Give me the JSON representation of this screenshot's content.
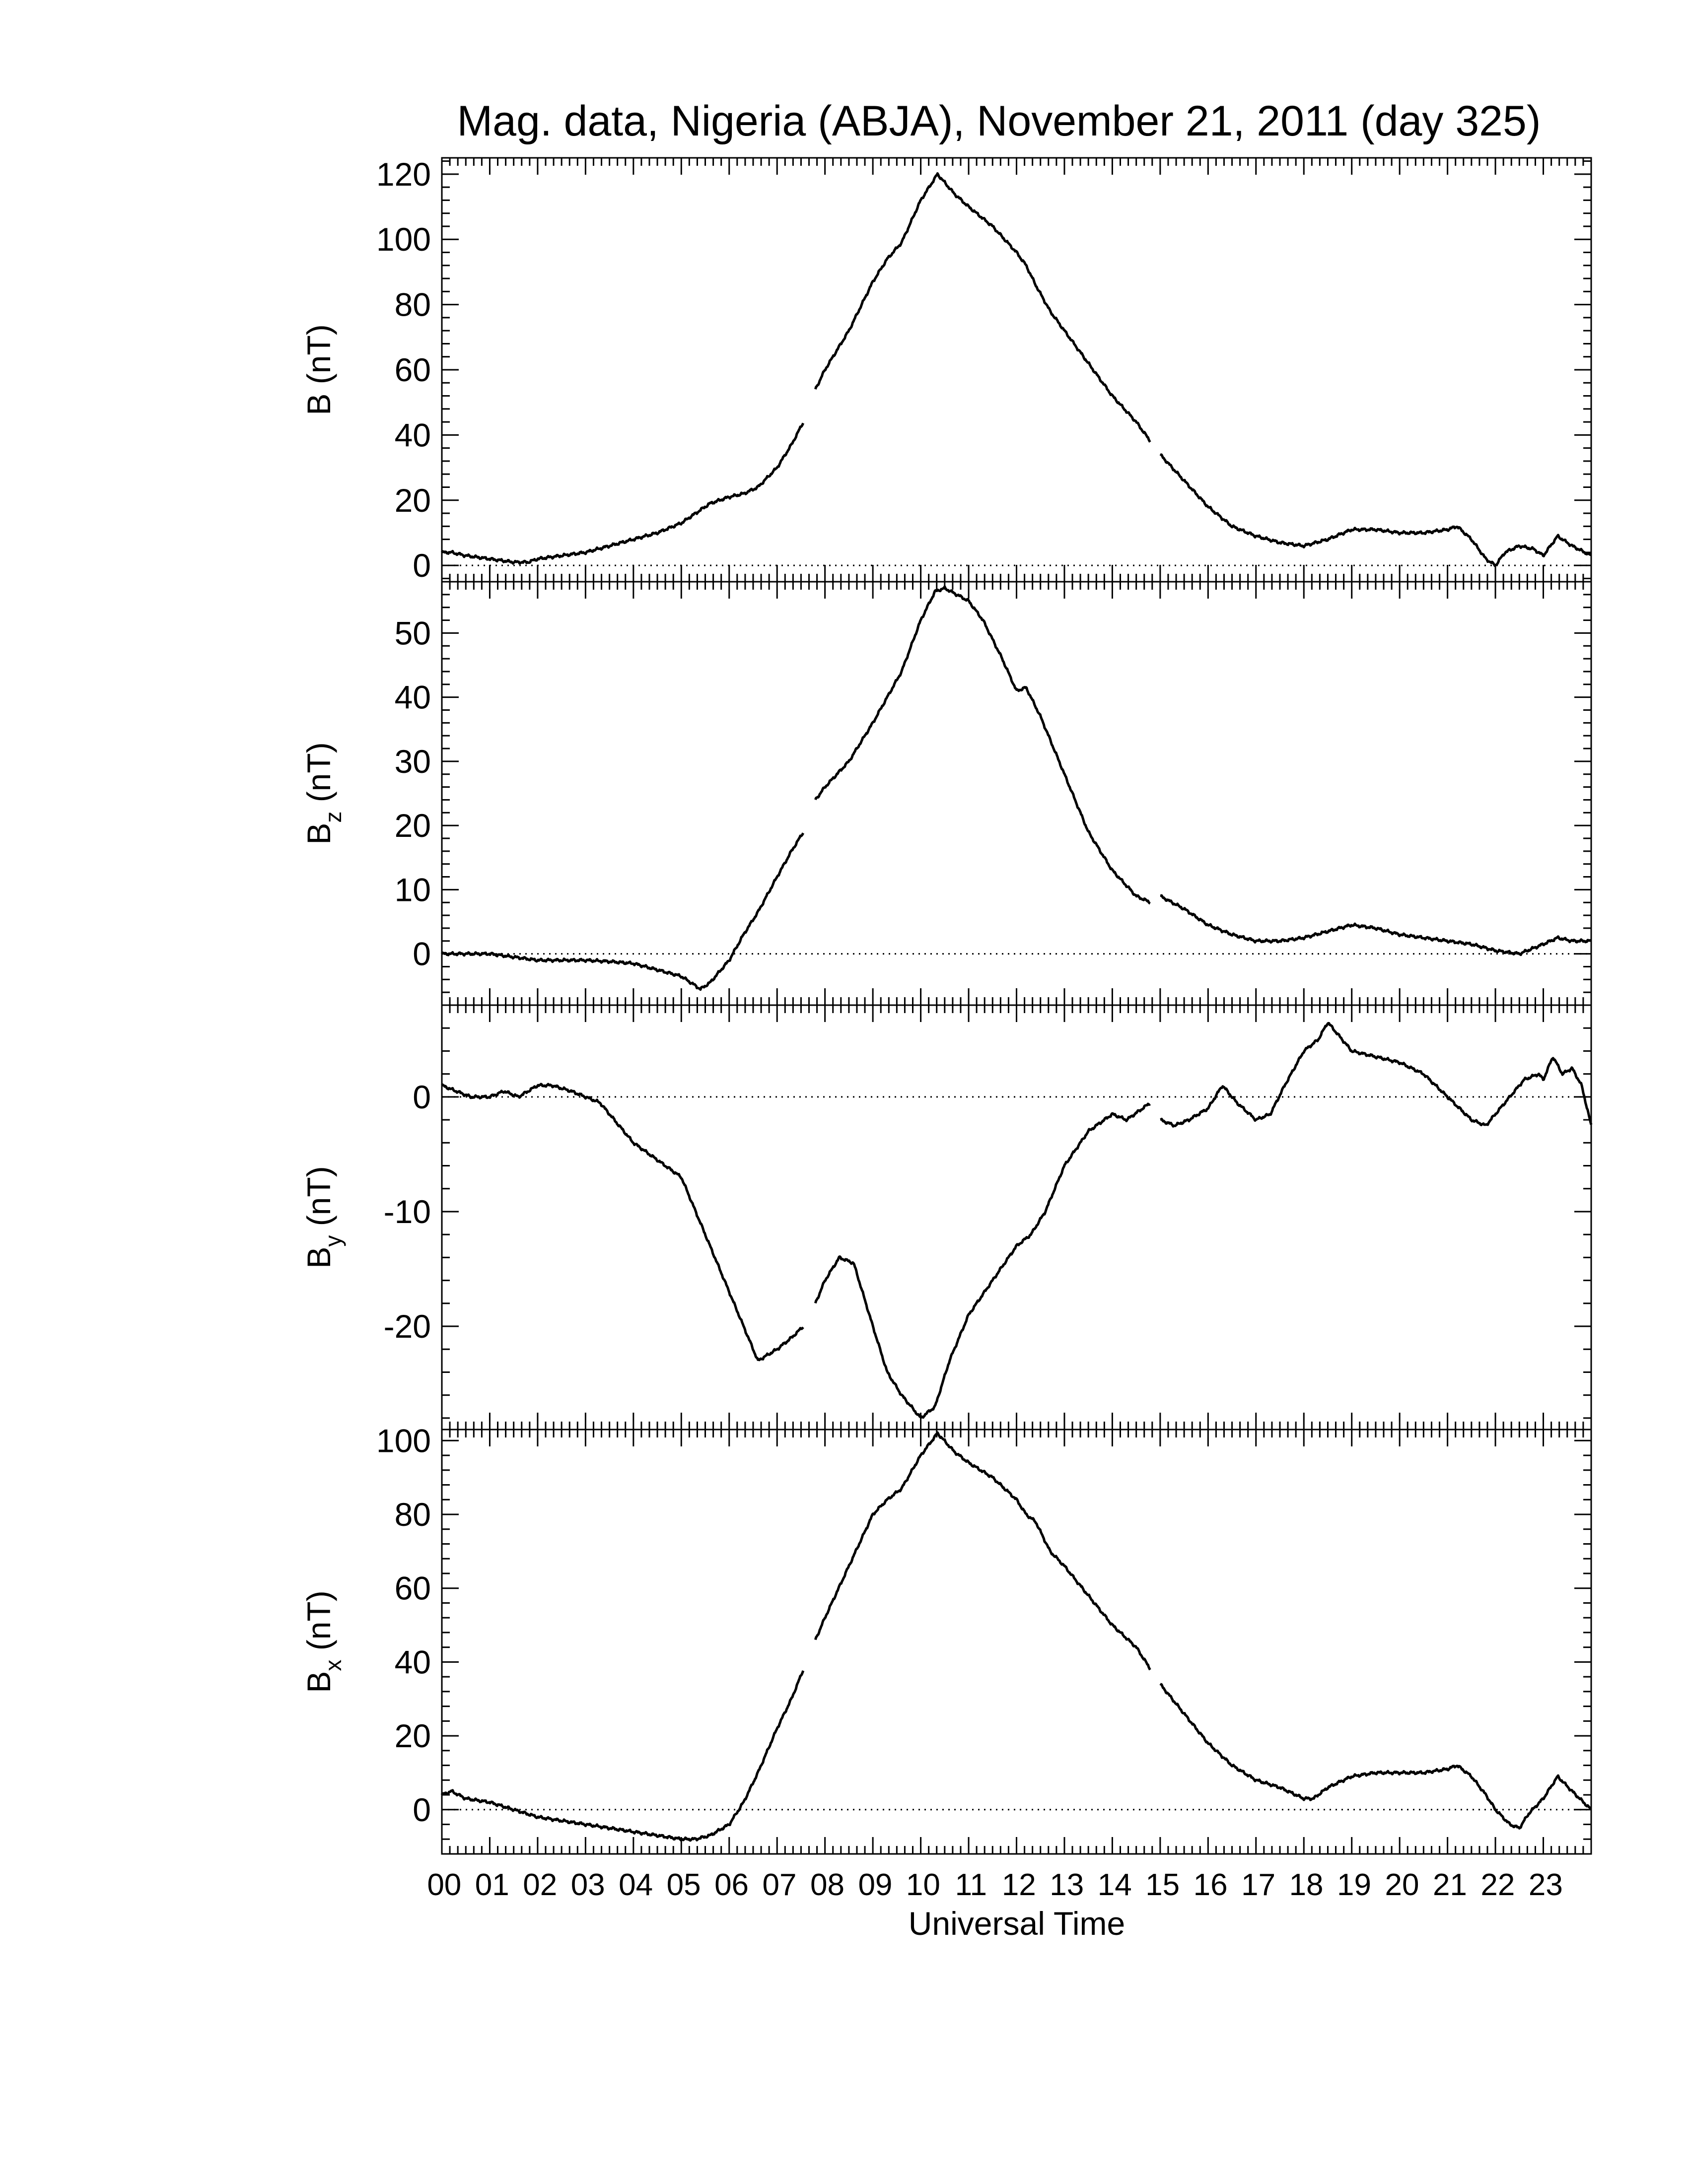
{
  "chart_data": {
    "type": "line",
    "title": "Mag. data, Nigeria (ABJA), November 21, 2011 (day 325)",
    "xlabel": "Universal Time",
    "x_tick_labels": [
      "00",
      "01",
      "02",
      "03",
      "04",
      "05",
      "06",
      "07",
      "08",
      "09",
      "10",
      "11",
      "12",
      "13",
      "14",
      "15",
      "16",
      "17",
      "18",
      "19",
      "20",
      "21",
      "22",
      "23"
    ],
    "xlim": [
      0,
      24
    ],
    "grid": false,
    "zero_reference_line": "dotted",
    "line_color": "#000000",
    "panels": [
      {
        "id": "B",
        "ylabel": "B (nT)",
        "ylabel_main": "B",
        "ylabel_sub": "",
        "ylabel_unit": " (nT)",
        "ylim": [
          -5,
          125
        ],
        "yticks": [
          0,
          20,
          40,
          60,
          80,
          100,
          120
        ],
        "ytick_labels": [
          "0",
          "20",
          "40",
          "60",
          "80",
          "100",
          "120"
        ],
        "gaps": [
          [
            7.55,
            7.8
          ],
          [
            14.8,
            15.0
          ]
        ],
        "x": [
          0,
          0.2,
          0.5,
          1.0,
          1.5,
          1.8,
          2.0,
          2.5,
          3.0,
          3.5,
          4.0,
          4.5,
          5.0,
          5.3,
          5.6,
          6.0,
          6.3,
          6.6,
          7.0,
          7.3,
          7.55,
          7.8,
          8.0,
          8.5,
          9.0,
          9.3,
          9.6,
          10.0,
          10.35,
          10.7,
          11.0,
          11.5,
          12.0,
          12.2,
          12.4,
          12.7,
          13.0,
          13.5,
          14.0,
          14.5,
          14.8,
          15.0,
          15.5,
          16.0,
          16.5,
          17.0,
          17.5,
          18.0,
          18.5,
          19.0,
          19.5,
          20.0,
          20.5,
          21.0,
          21.2,
          21.5,
          21.8,
          22.0,
          22.2,
          22.5,
          22.8,
          23.0,
          23.3,
          23.6,
          24.0
        ],
        "values": [
          4,
          4,
          3,
          2,
          1,
          1,
          2,
          3,
          4,
          6,
          8,
          10,
          13,
          16,
          19,
          21,
          22,
          24,
          30,
          37,
          44,
          54,
          60,
          72,
          87,
          94,
          99,
          112,
          120,
          114,
          110,
          104,
          96,
          92,
          86,
          78,
          72,
          62,
          52,
          44,
          38,
          34,
          26,
          18,
          12,
          9,
          7,
          6,
          8,
          11,
          11,
          10,
          10,
          11,
          12,
          8,
          2,
          0,
          4,
          6,
          5,
          3,
          9,
          6,
          3
        ]
      },
      {
        "id": "Bz",
        "ylabel": "Bz (nT)",
        "ylabel_main": "B",
        "ylabel_sub": "z",
        "ylabel_unit": " (nT)",
        "ylim": [
          -8,
          58
        ],
        "yticks": [
          0,
          10,
          20,
          30,
          40,
          50
        ],
        "ytick_labels": [
          "0",
          "10",
          "20",
          "30",
          "40",
          "50"
        ],
        "gaps": [
          [
            7.55,
            7.8
          ],
          [
            14.8,
            15.0
          ]
        ],
        "x": [
          0,
          0.5,
          1.0,
          1.5,
          2.0,
          2.5,
          3.0,
          3.5,
          4.0,
          4.5,
          5.0,
          5.4,
          5.6,
          6.0,
          6.3,
          6.6,
          7.0,
          7.3,
          7.55,
          7.8,
          8.0,
          8.5,
          9.0,
          9.3,
          9.6,
          10.0,
          10.3,
          10.5,
          11.0,
          11.3,
          11.7,
          12.0,
          12.2,
          12.5,
          13.0,
          13.5,
          14.0,
          14.5,
          14.8,
          15.0,
          15.5,
          16.0,
          16.5,
          17.0,
          17.5,
          18.0,
          18.5,
          19.0,
          19.5,
          20.0,
          20.5,
          21.0,
          21.5,
          22.0,
          22.5,
          23.0,
          23.3,
          23.6,
          24.0
        ],
        "values": [
          0,
          0,
          0,
          -0.5,
          -1,
          -1,
          -1,
          -1.2,
          -1.5,
          -2.5,
          -3.5,
          -5.5,
          -4.5,
          -1,
          3,
          6.5,
          12,
          16,
          19,
          24,
          26,
          30,
          36,
          40,
          44,
          52,
          56.5,
          57,
          55,
          52,
          46,
          41,
          41.5,
          37,
          28,
          19,
          13,
          9,
          8,
          9,
          7,
          4.5,
          3,
          2,
          2,
          2.5,
          3.5,
          4.5,
          4,
          3,
          2.5,
          2,
          1.5,
          0.5,
          0,
          1.5,
          2.5,
          2,
          2
        ]
      },
      {
        "id": "By",
        "ylabel": "By (nT)",
        "ylabel_main": "B",
        "ylabel_sub": "y",
        "ylabel_unit": " (nT)",
        "ylim": [
          -29,
          8
        ],
        "yticks": [
          -20,
          -10,
          0
        ],
        "ytick_labels": [
          "-20",
          "-10",
          "0"
        ],
        "gaps": [
          [
            7.55,
            7.8
          ],
          [
            14.8,
            15.0
          ]
        ],
        "x": [
          0,
          0.3,
          0.6,
          1.0,
          1.3,
          1.6,
          2.0,
          2.3,
          2.7,
          3.0,
          3.3,
          3.6,
          4.0,
          4.5,
          5.0,
          5.3,
          5.6,
          6.0,
          6.3,
          6.6,
          7.0,
          7.3,
          7.55,
          7.8,
          8.0,
          8.3,
          8.6,
          9.0,
          9.3,
          9.6,
          10.0,
          10.3,
          10.6,
          11.0,
          11.5,
          12.0,
          12.3,
          12.6,
          13.0,
          13.5,
          14.0,
          14.3,
          14.8,
          15.0,
          15.3,
          15.6,
          16.0,
          16.3,
          16.6,
          17.0,
          17.3,
          17.6,
          18.0,
          18.3,
          18.5,
          18.8,
          19.0,
          19.5,
          20.0,
          20.5,
          21.0,
          21.5,
          21.8,
          22.0,
          22.3,
          22.6,
          22.9,
          23.0,
          23.2,
          23.4,
          23.6,
          23.8,
          24.0
        ],
        "values": [
          1,
          0.5,
          0,
          0,
          0.5,
          0,
          1,
          1,
          0.5,
          0,
          -0.5,
          -2,
          -4,
          -5.5,
          -7,
          -10,
          -13,
          -17,
          -20,
          -23,
          -22,
          -21,
          -20,
          -18,
          -16,
          -14,
          -14.5,
          -20,
          -24,
          -26,
          -28,
          -27,
          -23,
          -19,
          -16,
          -13,
          -12,
          -10,
          -6,
          -3,
          -1.5,
          -2,
          -0.5,
          -2,
          -2.5,
          -2,
          -1,
          1,
          -0.5,
          -2,
          -1.5,
          1,
          4,
          5,
          6.5,
          5,
          4,
          3.5,
          3,
          2,
          0,
          -2,
          -2.5,
          -1.5,
          0,
          1.5,
          2,
          1.5,
          3.5,
          2,
          2.5,
          1,
          -2.5
        ]
      },
      {
        "id": "Bx",
        "ylabel": "Bx (nT)",
        "ylabel_main": "B",
        "ylabel_sub": "x",
        "ylabel_unit": " (nT)",
        "ylim": [
          -12,
          103
        ],
        "yticks": [
          0,
          20,
          40,
          60,
          80,
          100
        ],
        "ytick_labels": [
          "0",
          "20",
          "40",
          "60",
          "80",
          "100"
        ],
        "gaps": [
          [
            7.55,
            7.8
          ],
          [
            14.8,
            15.0
          ]
        ],
        "x": [
          0,
          0.2,
          0.5,
          1.0,
          1.5,
          2.0,
          2.5,
          3.0,
          3.5,
          4.0,
          4.5,
          5.0,
          5.3,
          5.6,
          6.0,
          6.3,
          6.6,
          7.0,
          7.3,
          7.55,
          7.8,
          8.0,
          8.5,
          9.0,
          9.3,
          9.6,
          10.0,
          10.35,
          10.7,
          11.0,
          11.5,
          12.0,
          12.2,
          12.4,
          12.7,
          13.0,
          13.5,
          14.0,
          14.5,
          14.8,
          15.0,
          15.5,
          16.0,
          16.5,
          17.0,
          17.5,
          18.0,
          18.2,
          18.5,
          19.0,
          19.5,
          20.0,
          20.5,
          21.0,
          21.2,
          21.5,
          21.8,
          22.0,
          22.3,
          22.5,
          22.7,
          23.0,
          23.3,
          23.6,
          24.0
        ],
        "values": [
          4,
          5,
          3,
          2,
          0,
          -2,
          -3,
          -4,
          -5,
          -6,
          -7,
          -8,
          -8,
          -7,
          -4,
          2,
          10,
          22,
          30,
          38,
          46,
          52,
          66,
          80,
          84,
          87,
          96,
          102,
          97,
          94,
          90,
          84,
          80,
          78,
          70,
          66,
          58,
          50,
          44,
          38,
          34,
          26,
          18,
          12,
          8,
          6,
          3,
          3,
          6,
          9,
          10,
          10,
          10,
          11,
          12,
          9,
          4,
          0,
          -4,
          -5,
          -1,
          3,
          9,
          5,
          0
        ]
      }
    ]
  }
}
